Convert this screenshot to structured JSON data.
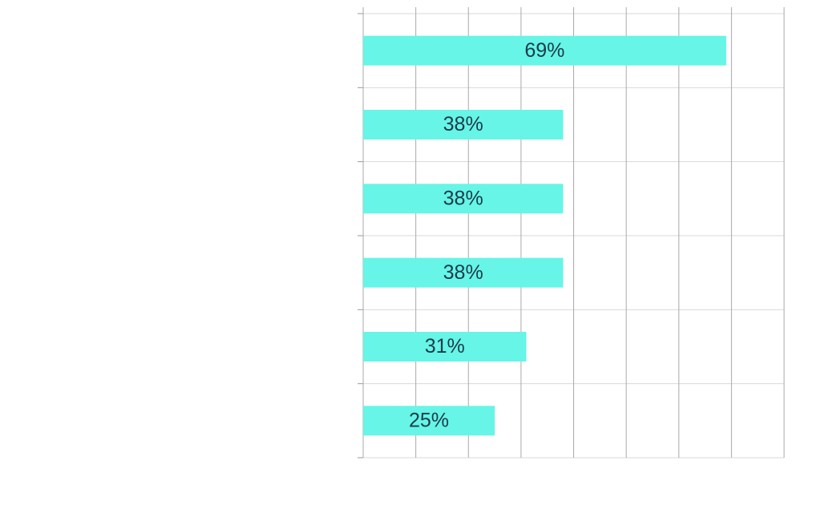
{
  "chart_data": {
    "type": "barh",
    "categories": [
      null,
      null,
      null,
      null,
      null,
      null
    ],
    "values": [
      69,
      38,
      38,
      38,
      31,
      25
    ],
    "value_labels": [
      "69%",
      "38%",
      "38%",
      "38%",
      "31%",
      "25%"
    ],
    "color": "#66f5e6",
    "xlim": [
      0,
      80
    ],
    "xticks": [
      0,
      10,
      20,
      30,
      40,
      50,
      60,
      70,
      80
    ],
    "grid": true
  }
}
